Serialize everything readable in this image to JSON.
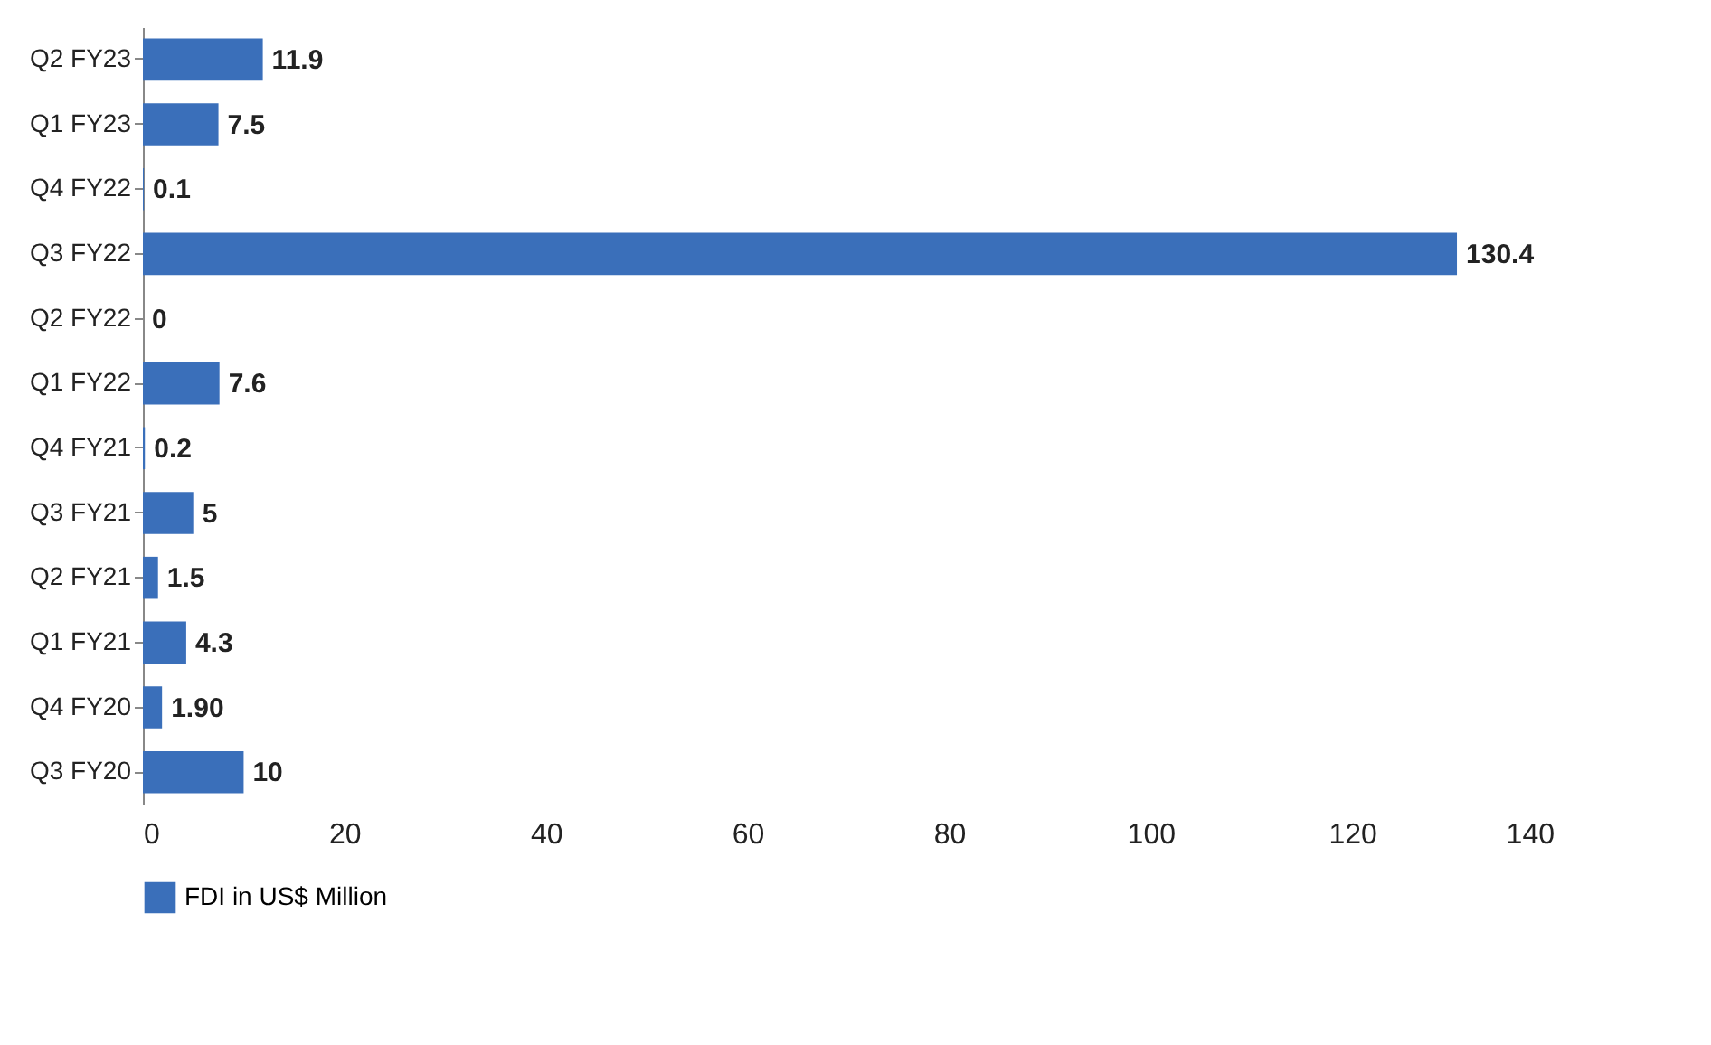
{
  "chart_data": {
    "type": "bar",
    "orientation": "horizontal",
    "categories": [
      "Q2 FY23",
      "Q1 FY23",
      "Q4 FY22",
      "Q3 FY22",
      "Q2 FY22",
      "Q1 FY22",
      "Q4 FY21",
      "Q3 FY21",
      "Q2 FY21",
      "Q1 FY21",
      "Q4 FY20",
      "Q3 FY20"
    ],
    "series": [
      {
        "name": "FDI in US$ Million",
        "color": "#3a6fba",
        "values": [
          11.9,
          7.5,
          0.1,
          130.4,
          0,
          7.6,
          0.2,
          5,
          1.5,
          4.3,
          1.9,
          10
        ],
        "value_labels": [
          "11.9",
          "7.5",
          "0.1",
          "130.4",
          "0",
          "7.6",
          "0.2",
          "5",
          "1.5",
          "4.3",
          "1.90",
          "10"
        ]
      }
    ],
    "xlim": [
      0,
      140
    ],
    "xticks": [
      0,
      20,
      40,
      60,
      80,
      100,
      120,
      140
    ],
    "grid": false,
    "legend": "bottom"
  }
}
